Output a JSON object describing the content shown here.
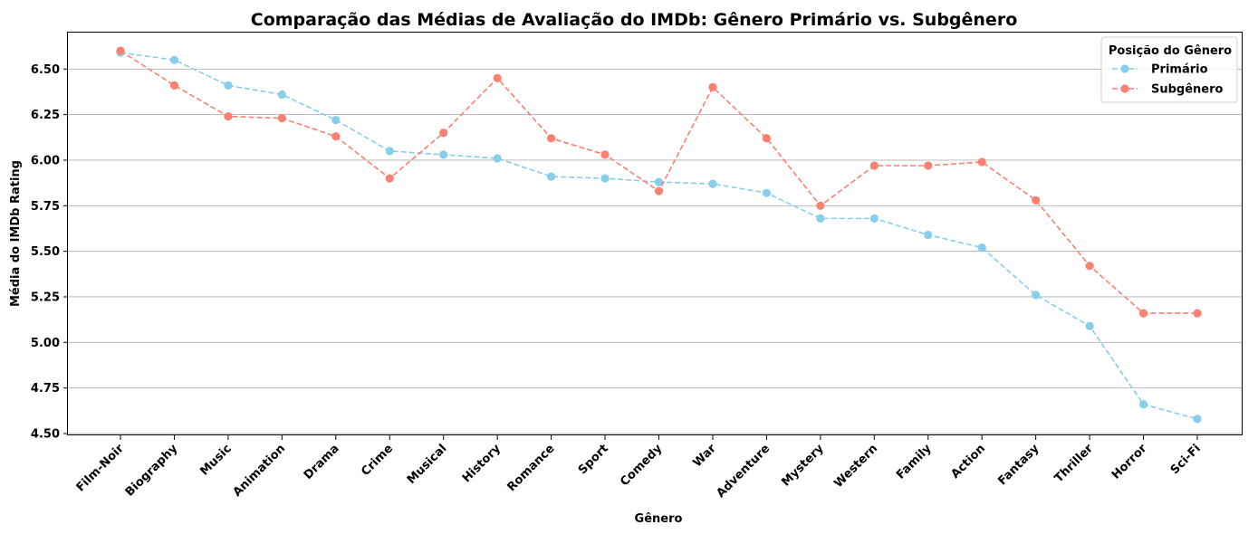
{
  "chart_data": {
    "type": "line",
    "title": "Comparação das Médias de Avaliação do IMDb: Gênero Primário vs. Subgênero",
    "xlabel": "Gênero",
    "ylabel": "Média do IMDb Rating",
    "ylim": [
      4.49,
      6.7
    ],
    "yticks": [
      4.5,
      4.75,
      5.0,
      5.25,
      5.5,
      5.75,
      6.0,
      6.25,
      6.5
    ],
    "ytick_labels": [
      "4.50",
      "4.75",
      "5.00",
      "5.25",
      "5.50",
      "5.75",
      "6.00",
      "6.25",
      "6.50"
    ],
    "grid": "horizontal",
    "legend": {
      "title": "Posição do Gênero",
      "placement": "top-right"
    },
    "categories": [
      "Film-Noir",
      "Biography",
      "Music",
      "Animation",
      "Drama",
      "Crime",
      "Musical",
      "History",
      "Romance",
      "Sport",
      "Comedy",
      "War",
      "Adventure",
      "Mystery",
      "Western",
      "Family",
      "Action",
      "Fantasy",
      "Thriller",
      "Horror",
      "Sci-Fi"
    ],
    "series": [
      {
        "name": "Primário",
        "color": "#87ceeb",
        "values": [
          6.59,
          6.55,
          6.41,
          6.36,
          6.22,
          6.05,
          6.03,
          6.01,
          5.91,
          5.9,
          5.88,
          5.87,
          5.82,
          5.68,
          5.68,
          5.59,
          5.52,
          5.26,
          5.09,
          4.66,
          4.58
        ]
      },
      {
        "name": "Subgênero",
        "color": "#fa8072",
        "values": [
          6.6,
          6.41,
          6.24,
          6.23,
          6.13,
          5.9,
          6.15,
          6.45,
          6.12,
          6.03,
          5.83,
          6.4,
          6.12,
          5.75,
          5.97,
          5.97,
          5.99,
          5.78,
          5.42,
          5.16,
          5.16
        ]
      }
    ]
  }
}
